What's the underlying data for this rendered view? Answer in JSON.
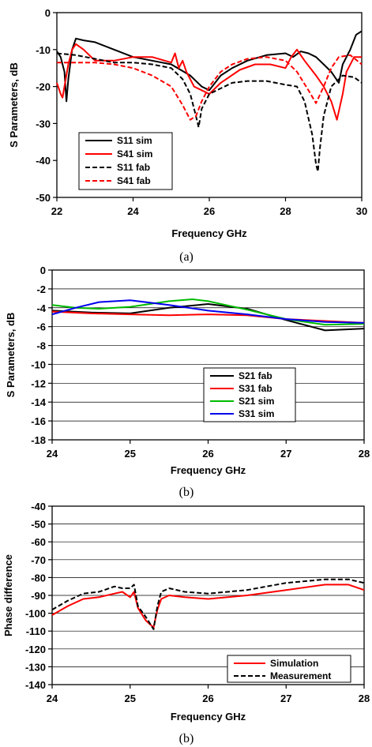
{
  "chart_data": [
    {
      "type": "line",
      "caption": "(a)",
      "xlabel": "Frequency GHz",
      "ylabel": "S Parameters, dB",
      "xlim": [
        22,
        30
      ],
      "ylim": [
        -50,
        0
      ],
      "xticks": [
        "22",
        "24",
        "26",
        "28",
        "30"
      ],
      "yticks": [
        "0",
        "-10",
        "-20",
        "-30",
        "-40",
        "-50"
      ],
      "grid": "none",
      "legend_position": "bottom-left",
      "series": [
        {
          "name": "S11 sim",
          "color": "#000000",
          "dash": "solid",
          "points": [
            [
              22,
              -10.5
            ],
            [
              22.1,
              -12
            ],
            [
              22.2,
              -16
            ],
            [
              22.25,
              -24
            ],
            [
              22.3,
              -18
            ],
            [
              22.4,
              -10
            ],
            [
              22.5,
              -7
            ],
            [
              22.7,
              -7.5
            ],
            [
              23,
              -8
            ],
            [
              23.5,
              -10
            ],
            [
              24,
              -12
            ],
            [
              24.5,
              -13
            ],
            [
              25,
              -14
            ],
            [
              25.5,
              -17
            ],
            [
              25.8,
              -20
            ],
            [
              26,
              -21
            ],
            [
              26.3,
              -17
            ],
            [
              26.6,
              -15
            ],
            [
              27,
              -13
            ],
            [
              27.5,
              -11.5
            ],
            [
              28,
              -11
            ],
            [
              28.2,
              -12
            ],
            [
              28.4,
              -10.5
            ],
            [
              28.6,
              -11
            ],
            [
              28.8,
              -12
            ],
            [
              29,
              -14
            ],
            [
              29.2,
              -16
            ],
            [
              29.4,
              -19
            ],
            [
              29.5,
              -14
            ],
            [
              29.7,
              -10
            ],
            [
              29.85,
              -6
            ],
            [
              30,
              -5
            ]
          ]
        },
        {
          "name": "S41 sim",
          "color": "#ff0000",
          "dash": "solid",
          "points": [
            [
              22,
              -19
            ],
            [
              22.1,
              -22
            ],
            [
              22.15,
              -23
            ],
            [
              22.2,
              -20
            ],
            [
              22.3,
              -14
            ],
            [
              22.4,
              -10
            ],
            [
              22.5,
              -8.5
            ],
            [
              22.7,
              -10
            ],
            [
              23,
              -13
            ],
            [
              23.5,
              -13
            ],
            [
              24,
              -12
            ],
            [
              24.5,
              -12
            ],
            [
              25,
              -13.5
            ],
            [
              25.1,
              -11
            ],
            [
              25.2,
              -15
            ],
            [
              25.3,
              -13
            ],
            [
              25.4,
              -16
            ],
            [
              25.6,
              -20
            ],
            [
              25.8,
              -21
            ],
            [
              26,
              -22
            ],
            [
              26.3,
              -19
            ],
            [
              26.8,
              -15.5
            ],
            [
              27.2,
              -14
            ],
            [
              27.6,
              -14
            ],
            [
              28,
              -15
            ],
            [
              28.15,
              -12
            ],
            [
              28.3,
              -10
            ],
            [
              28.5,
              -13
            ],
            [
              28.8,
              -17
            ],
            [
              29,
              -20
            ],
            [
              29.2,
              -24
            ],
            [
              29.35,
              -29
            ],
            [
              29.5,
              -22
            ],
            [
              29.6,
              -16
            ],
            [
              29.8,
              -12
            ],
            [
              30,
              -12
            ]
          ]
        },
        {
          "name": "S11 fab",
          "color": "#000000",
          "dash": "dashed",
          "points": [
            [
              22,
              -11
            ],
            [
              22.5,
              -11.5
            ],
            [
              23,
              -12.5
            ],
            [
              23.5,
              -13.5
            ],
            [
              24,
              -13.5
            ],
            [
              24.5,
              -14
            ],
            [
              25,
              -15
            ],
            [
              25.3,
              -18
            ],
            [
              25.5,
              -22
            ],
            [
              25.65,
              -28
            ],
            [
              25.72,
              -31
            ],
            [
              25.8,
              -26
            ],
            [
              26,
              -22
            ],
            [
              26.3,
              -20.5
            ],
            [
              26.6,
              -19
            ],
            [
              27,
              -18.5
            ],
            [
              27.5,
              -18.5
            ],
            [
              28,
              -19.5
            ],
            [
              28.3,
              -20
            ],
            [
              28.5,
              -24
            ],
            [
              28.7,
              -33
            ],
            [
              28.8,
              -41
            ],
            [
              28.85,
              -43
            ],
            [
              28.9,
              -37
            ],
            [
              29,
              -28
            ],
            [
              29.2,
              -20
            ],
            [
              29.5,
              -17
            ],
            [
              29.8,
              -17.5
            ],
            [
              30,
              -19
            ]
          ]
        },
        {
          "name": "S41 fab",
          "color": "#ff0000",
          "dash": "dashed",
          "points": [
            [
              22,
              -13.5
            ],
            [
              22.5,
              -13.5
            ],
            [
              23,
              -13.5
            ],
            [
              23.5,
              -14
            ],
            [
              24,
              -15
            ],
            [
              24.5,
              -17
            ],
            [
              25,
              -20
            ],
            [
              25.3,
              -25
            ],
            [
              25.5,
              -29
            ],
            [
              25.65,
              -28
            ],
            [
              25.8,
              -24
            ],
            [
              26,
              -20
            ],
            [
              26.3,
              -16
            ],
            [
              26.6,
              -14
            ],
            [
              27,
              -12.5
            ],
            [
              27.5,
              -12
            ],
            [
              28,
              -13
            ],
            [
              28.3,
              -16
            ],
            [
              28.6,
              -21
            ],
            [
              28.8,
              -24.5
            ],
            [
              29,
              -20
            ],
            [
              29.2,
              -15
            ],
            [
              29.4,
              -12
            ],
            [
              29.7,
              -11.5
            ],
            [
              30,
              -14
            ]
          ]
        }
      ]
    },
    {
      "type": "line",
      "caption": "(b)",
      "xlabel": "Frequency GHz",
      "ylabel": "S Parameters, dB",
      "xlim": [
        24,
        28
      ],
      "ylim": [
        -18,
        0
      ],
      "xticks": [
        "24",
        "25",
        "26",
        "27",
        "28"
      ],
      "yticks": [
        "0",
        "-2",
        "-4",
        "-6",
        "-8",
        "-10",
        "-12",
        "-14",
        "-16",
        "-18"
      ],
      "grid": "horizontal",
      "legend_position": "bottom-right",
      "series": [
        {
          "name": "S21 fab",
          "color": "#000000",
          "dash": "solid",
          "points": [
            [
              24,
              -4.3
            ],
            [
              24.5,
              -4.5
            ],
            [
              25,
              -4.6
            ],
            [
              25.5,
              -4.0
            ],
            [
              26,
              -3.6
            ],
            [
              26.5,
              -4.1
            ],
            [
              27,
              -5.3
            ],
            [
              27.5,
              -6.4
            ],
            [
              28,
              -6.2
            ]
          ]
        },
        {
          "name": "S31 fab",
          "color": "#ff0000",
          "dash": "solid",
          "points": [
            [
              24,
              -4.4
            ],
            [
              24.5,
              -4.6
            ],
            [
              25,
              -4.7
            ],
            [
              25.5,
              -4.8
            ],
            [
              26,
              -4.7
            ],
            [
              26.5,
              -4.8
            ],
            [
              27,
              -5.2
            ],
            [
              27.5,
              -5.4
            ],
            [
              28,
              -5.6
            ]
          ]
        },
        {
          "name": "S21 sim",
          "color": "#00bb00",
          "dash": "solid",
          "points": [
            [
              24,
              -3.7
            ],
            [
              24.3,
              -4.0
            ],
            [
              24.6,
              -4.1
            ],
            [
              25,
              -3.9
            ],
            [
              25.5,
              -3.3
            ],
            [
              25.8,
              -3.1
            ],
            [
              26,
              -3.3
            ],
            [
              26.5,
              -4.2
            ],
            [
              27,
              -5.2
            ],
            [
              27.5,
              -5.8
            ],
            [
              28,
              -5.7
            ]
          ]
        },
        {
          "name": "S31 sim",
          "color": "#0000ee",
          "dash": "solid",
          "points": [
            [
              24,
              -4.7
            ],
            [
              24.3,
              -4.0
            ],
            [
              24.6,
              -3.4
            ],
            [
              25,
              -3.2
            ],
            [
              25.5,
              -3.7
            ],
            [
              26,
              -4.3
            ],
            [
              26.5,
              -4.7
            ],
            [
              27,
              -5.2
            ],
            [
              27.5,
              -5.5
            ],
            [
              28,
              -5.6
            ]
          ]
        }
      ]
    },
    {
      "type": "line",
      "caption": "(b)",
      "xlabel": "Frequency GHz",
      "ylabel": "Phase difference",
      "xlim": [
        24,
        28
      ],
      "ylim": [
        -140,
        -40
      ],
      "xticks": [
        "24",
        "25",
        "26",
        "27",
        "28"
      ],
      "yticks": [
        "-40",
        "-50",
        "-60",
        "-70",
        "-80",
        "-90",
        "-100",
        "-110",
        "-120",
        "-130",
        "-140"
      ],
      "grid": "horizontal",
      "legend_position": "bottom-right",
      "series": [
        {
          "name": "Simulation",
          "color": "#ff0000",
          "dash": "solid",
          "points": [
            [
              24,
              -101
            ],
            [
              24.2,
              -96
            ],
            [
              24.4,
              -92
            ],
            [
              24.6,
              -91
            ],
            [
              24.8,
              -89
            ],
            [
              24.9,
              -88
            ],
            [
              25,
              -91
            ],
            [
              25.05,
              -88
            ],
            [
              25.1,
              -97
            ],
            [
              25.2,
              -104
            ],
            [
              25.3,
              -108
            ],
            [
              25.35,
              -98
            ],
            [
              25.4,
              -92
            ],
            [
              25.5,
              -90
            ],
            [
              25.7,
              -91
            ],
            [
              26,
              -92
            ],
            [
              26.5,
              -90
            ],
            [
              27,
              -87
            ],
            [
              27.5,
              -84
            ],
            [
              27.8,
              -84
            ],
            [
              28,
              -87
            ]
          ]
        },
        {
          "name": "Measurement",
          "color": "#000000",
          "dash": "dashed",
          "points": [
            [
              24,
              -98
            ],
            [
              24.2,
              -93
            ],
            [
              24.4,
              -89
            ],
            [
              24.6,
              -88
            ],
            [
              24.8,
              -85
            ],
            [
              24.9,
              -86
            ],
            [
              25,
              -86
            ],
            [
              25.05,
              -84
            ],
            [
              25.1,
              -96
            ],
            [
              25.2,
              -102
            ],
            [
              25.3,
              -109
            ],
            [
              25.35,
              -96
            ],
            [
              25.4,
              -88
            ],
            [
              25.5,
              -86
            ],
            [
              25.7,
              -88
            ],
            [
              26,
              -89
            ],
            [
              26.5,
              -87
            ],
            [
              27,
              -83
            ],
            [
              27.5,
              -81
            ],
            [
              27.8,
              -81
            ],
            [
              28,
              -83
            ]
          ]
        }
      ]
    }
  ]
}
